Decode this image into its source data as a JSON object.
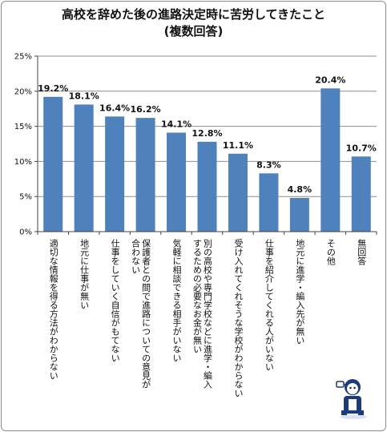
{
  "chart_data": {
    "type": "bar",
    "title": [
      "高校を辞めた後の進路決定時に苦労してきたこと",
      "(複数回答)"
    ],
    "categories": [
      [
        "適切な情報を得る方法がわからない"
      ],
      [
        "地元に仕事が無い"
      ],
      [
        "仕事をしていく自信がもてない"
      ],
      [
        "保護者との間で進路についての意見が",
        "合わない"
      ],
      [
        "気軽に相談できる相手がいない"
      ],
      [
        "別の高校や専門学校などに進学・編入",
        "するための必要なお金が無い"
      ],
      [
        "受け入れてくれそうな学校がわからない"
      ],
      [
        "仕事を紹介してくれる人がいない"
      ],
      [
        "地元に進学・編入先が無い"
      ],
      [
        "その他"
      ],
      [
        "無回答"
      ]
    ],
    "values": [
      19.2,
      18.1,
      16.4,
      16.2,
      14.1,
      12.8,
      11.1,
      8.3,
      4.8,
      20.4,
      10.7
    ],
    "value_labels": [
      "19.2%",
      "18.1%",
      "16.4%",
      "16.2%",
      "14.1%",
      "12.8%",
      "11.1%",
      "8.3%",
      "4.8%",
      "20.4%",
      "10.7%"
    ],
    "yticks": [
      0,
      5,
      10,
      15,
      20,
      25
    ],
    "ytick_labels": [
      "0%",
      "5%",
      "10%",
      "15%",
      "20%",
      "25%"
    ],
    "ylim": [
      0,
      25
    ],
    "grid": true,
    "legend": "none",
    "bar_color": "#4f81bd"
  }
}
